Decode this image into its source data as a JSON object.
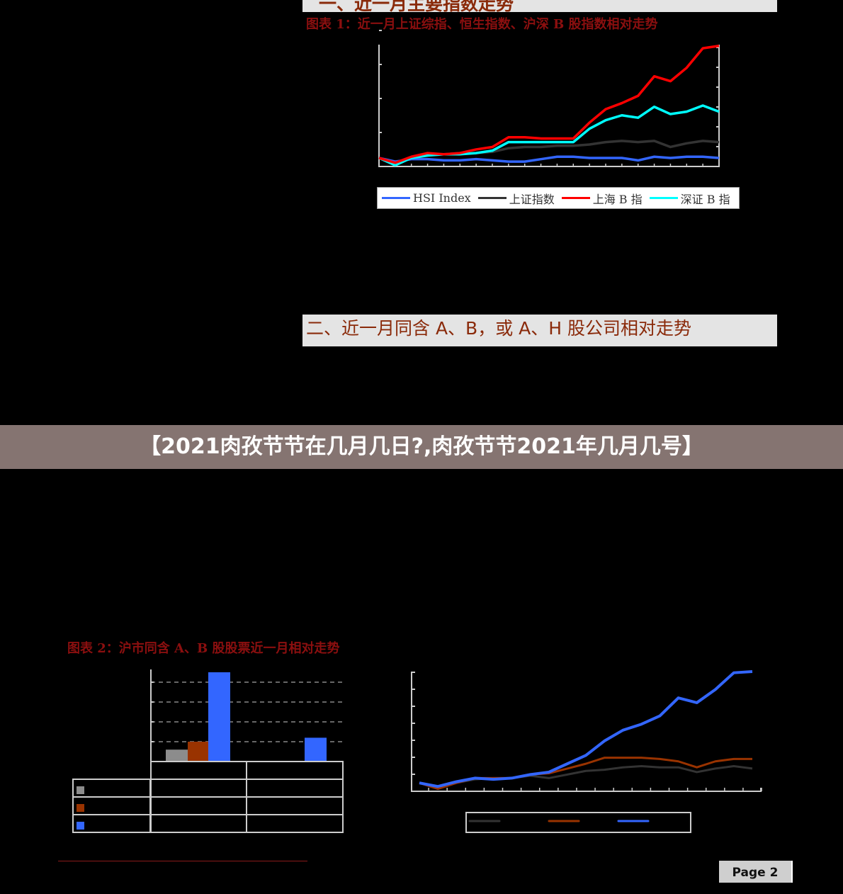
{
  "section1": {
    "heading": "一、近一月主要指数走势"
  },
  "chart1": {
    "caption": "图表 1：近一月上证综指、恒生指数、沪深 B 股指数相对走势"
  },
  "section2": {
    "heading": "二、近一月同含 A、B，或 A、H 股公司相对走势"
  },
  "banner": {
    "title": "【2021肉孜节节在几月几日?,肉孜节节2021年几月几号】"
  },
  "chart2": {
    "caption": "图表 2：沪市同含 A、B 股股票近一月相对走势"
  },
  "footer": {
    "page_label": "Page 2"
  },
  "colors": {
    "caption": "#8b0f0f",
    "heading": "#8a2a0a",
    "banner_bg": "#857471",
    "hsi": "#3366ff",
    "sse": "#333333",
    "shb": "#ff0000",
    "szb": "#00ffff",
    "gray_bar": "#8c8c8c",
    "brown_bar": "#993300",
    "blue_bar": "#3366ff"
  },
  "chart_data": [
    {
      "type": "line",
      "title": "图表 1：近一月上证综指、恒生指数、沪深 B 股指数相对走势",
      "legend_placement": "bottom",
      "grid": false,
      "series": [
        {
          "name": "HSI  Index",
          "color": "#3366ff",
          "values": [
            7,
            4,
            6,
            6,
            5,
            5,
            6,
            5,
            4,
            4,
            6,
            8,
            8,
            7,
            7,
            7,
            5,
            8,
            7,
            8,
            8,
            7
          ]
        },
        {
          "name": "上证指数",
          "color": "#333333",
          "values": [
            7,
            3,
            7,
            10,
            10,
            11,
            11,
            12,
            15,
            16,
            16,
            17,
            17,
            18,
            20,
            21,
            20,
            21,
            16,
            19,
            21,
            20
          ]
        },
        {
          "name": "上海 B 指",
          "color": "#ff0000",
          "values": [
            7,
            3,
            8,
            11,
            10,
            11,
            14,
            16,
            24,
            24,
            23,
            23,
            23,
            36,
            47,
            52,
            58,
            74,
            70,
            81,
            97,
            99
          ]
        },
        {
          "name": "深证 B 指",
          "color": "#00ffff",
          "values": [
            7,
            1,
            7,
            9,
            10,
            10,
            11,
            13,
            20,
            20,
            20,
            20,
            20,
            31,
            38,
            42,
            40,
            49,
            43,
            45,
            50,
            45
          ]
        }
      ],
      "ylim": [
        0,
        100
      ]
    },
    {
      "type": "bar",
      "title": "图表 2：沪市同含 A、B 股股票近一月相对走势",
      "grid": true,
      "categories": [
        "",
        ""
      ],
      "series": [
        {
          "color": "#8c8c8c",
          "values": [
            0.6,
            0
          ]
        },
        {
          "color": "#993300",
          "values": [
            1.0,
            0
          ]
        },
        {
          "color": "#3366ff",
          "values": [
            4.5,
            1.2
          ]
        }
      ],
      "ylim": [
        0,
        4.6
      ]
    },
    {
      "type": "line",
      "grid": false,
      "legend_placement": "bottom",
      "series": [
        {
          "color": "#333333",
          "values": [
            7,
            3,
            7,
            10,
            11,
            11,
            13,
            11,
            14,
            17,
            18,
            20,
            21,
            20,
            20,
            16,
            19,
            21,
            19
          ]
        },
        {
          "color": "#993300",
          "values": [
            7,
            2,
            7,
            11,
            11,
            11,
            14,
            15,
            19,
            23,
            28,
            28,
            28,
            27,
            25,
            20,
            25,
            27,
            27
          ]
        },
        {
          "color": "#3366ff",
          "values": [
            7,
            4,
            8,
            11,
            10,
            11,
            14,
            16,
            23,
            30,
            42,
            51,
            56,
            63,
            78,
            74,
            85,
            99,
            100
          ]
        }
      ],
      "ylim": [
        0,
        100
      ]
    }
  ]
}
